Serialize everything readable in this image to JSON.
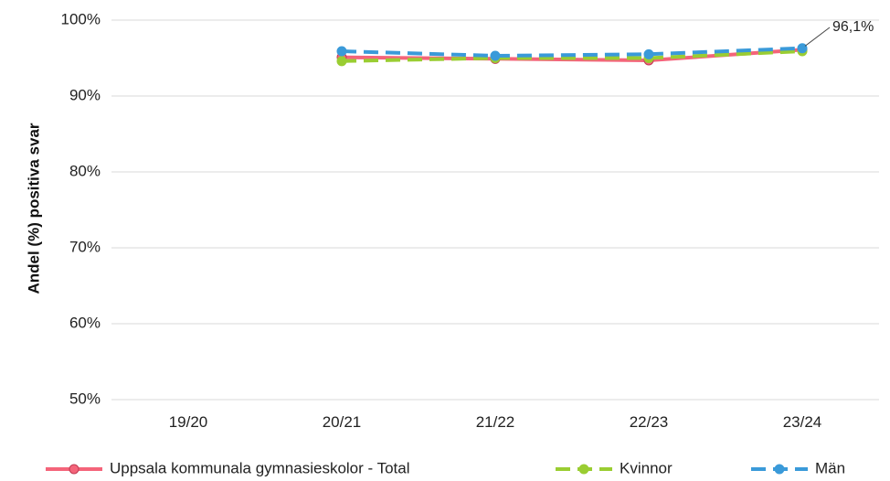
{
  "chart_data": {
    "type": "line",
    "title": "",
    "xlabel": "",
    "ylabel": "Andel (%) positiva svar",
    "categories": [
      "19/20",
      "20/21",
      "21/22",
      "22/23",
      "23/24"
    ],
    "ylim": [
      50,
      100
    ],
    "yticks": [
      "50%",
      "60%",
      "70%",
      "80%",
      "90%",
      "100%"
    ],
    "grid": true,
    "legend_position": "bottom",
    "series": [
      {
        "name": "Uppsala kommunala gymnasieskolor - Total",
        "values": [
          null,
          95.1,
          94.9,
          94.7,
          96.1
        ],
        "color": "#f4647a",
        "style": "solid",
        "marker": "circle"
      },
      {
        "name": "Kvinnor",
        "values": [
          null,
          94.6,
          95.0,
          95.0,
          95.9
        ],
        "color": "#9acd32",
        "style": "dashed",
        "marker": "circle"
      },
      {
        "name": "Män",
        "values": [
          null,
          95.9,
          95.3,
          95.5,
          96.3
        ],
        "color": "#3a9ad9",
        "style": "dashed",
        "marker": "circle"
      }
    ],
    "annotations": [
      {
        "text": "96,1%",
        "series": 0,
        "category": "23/24"
      }
    ]
  }
}
